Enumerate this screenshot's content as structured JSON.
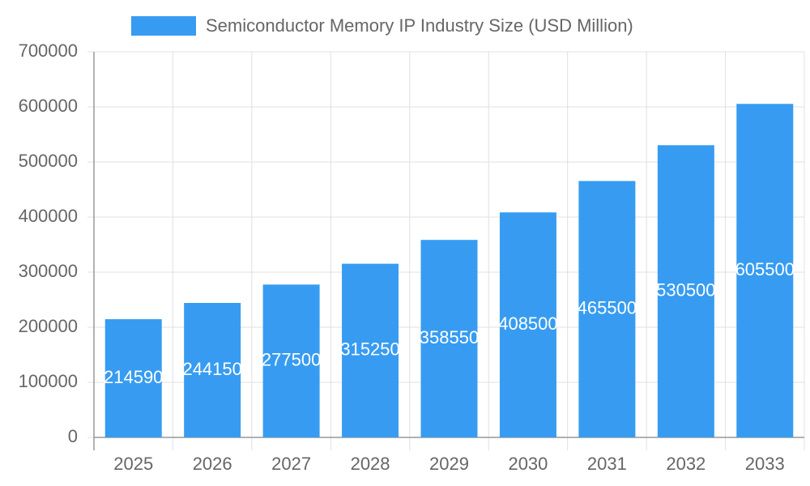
{
  "chart_data": {
    "type": "bar",
    "legend": "Semiconductor Memory IP Industry Size (USD Million)",
    "categories": [
      "2025",
      "2026",
      "2027",
      "2028",
      "2029",
      "2030",
      "2031",
      "2032",
      "2033"
    ],
    "values": [
      214590,
      244150,
      277500,
      315250,
      358550,
      408500,
      465500,
      530500,
      605500
    ],
    "color": "#379cf1",
    "ylim": [
      0,
      700000
    ],
    "yticks": [
      0,
      100000,
      200000,
      300000,
      400000,
      500000,
      600000,
      700000
    ],
    "grid": true
  }
}
